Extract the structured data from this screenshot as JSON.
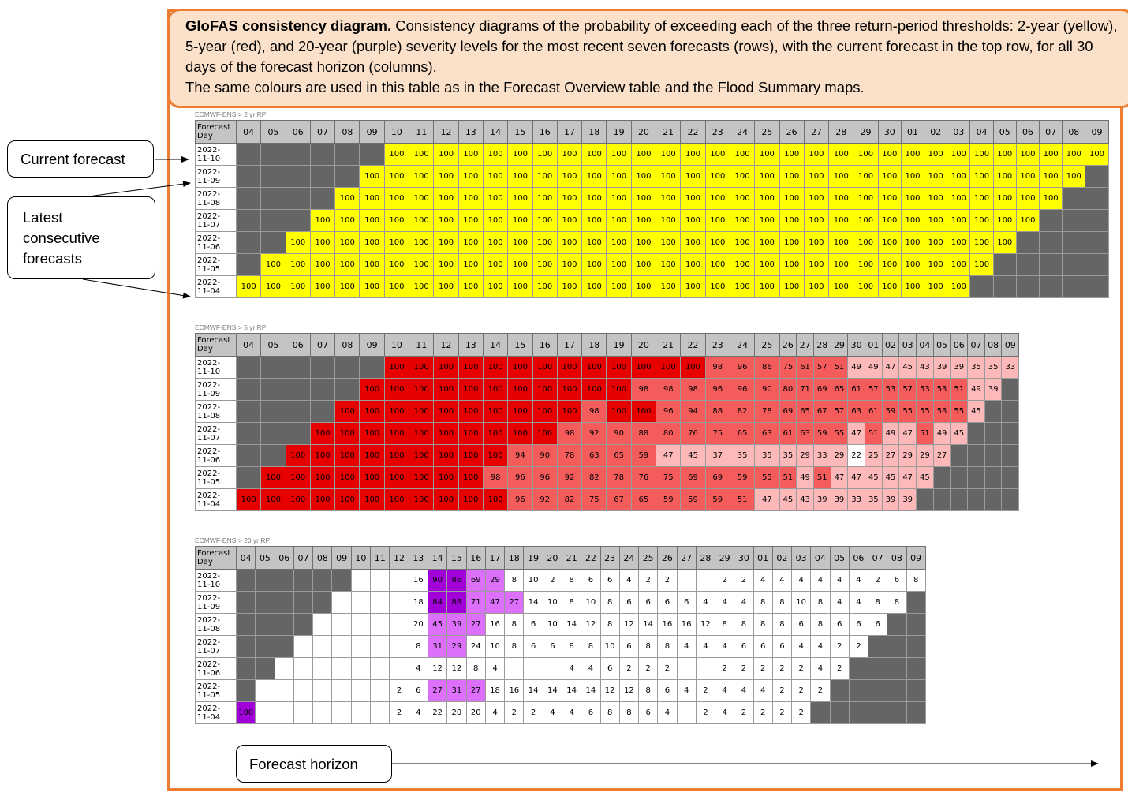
{
  "caption": {
    "title": "GloFAS consistency diagram.",
    "body": " Consistency diagrams of the probability of exceeding each of the three return-period thresholds: 2-year (yellow), 5-year (red), and 20-year (purple) severity levels for the most recent seven forecasts (rows), with the current forecast in the top row, for all 30 days of the forecast horizon (columns).",
    "note": "The same colours are used in this table as in the Forecast Overview table and the Flood Summary maps."
  },
  "callouts": {
    "current": "Current forecast",
    "latest": [
      "Latest",
      "consecutive",
      "forecasts"
    ],
    "horizon": "Forecast horizon"
  },
  "corner_label": [
    "Forecast",
    "Day"
  ],
  "days": [
    "04",
    "05",
    "06",
    "07",
    "08",
    "09",
    "10",
    "11",
    "12",
    "13",
    "14",
    "15",
    "16",
    "17",
    "18",
    "19",
    "20",
    "21",
    "22",
    "23",
    "24",
    "25",
    "26",
    "27",
    "28",
    "29",
    "30",
    "01",
    "02",
    "03",
    "04",
    "05",
    "06",
    "07",
    "08",
    "09"
  ],
  "dates": [
    [
      "2022-",
      "11-10"
    ],
    [
      "2022-",
      "11-09"
    ],
    [
      "2022-",
      "11-08"
    ],
    [
      "2022-",
      "11-07"
    ],
    [
      "2022-",
      "11-06"
    ],
    [
      "2022-",
      "11-05"
    ],
    [
      "2022-",
      "11-04"
    ]
  ],
  "colors": {
    "grey": "#656565",
    "yellow": "#ffff00",
    "red_high": "#e60000",
    "red_mid": "#f45c5c",
    "red_low": "#fdb9b9",
    "purple_high": "#a100d9",
    "purple_mid": "#dd70fb",
    "frame": "#ed7d31"
  },
  "panels": [
    {
      "source": "ECMWF-ENS > 2 yr RP",
      "rows": [
        "g g g g g g 100 100 100 100 100 100 100 100 100 100 100 100 100 100 100 100 100 100 100 100 100 100 100 100 100 100 100 100 100 100",
        "g g g g g 100 100 100 100 100 100 100 100 100 100 100 100 100 100 100 100 100 100 100 100 100 100 100 100 100 100 100 100 100 100 g",
        "g g g g 100 100 100 100 100 100 100 100 100 100 100 100 100 100 100 100 100 100 100 100 100 100 100 100 100 100 100 100 100 100 g g",
        "g g g 100 100 100 100 100 100 100 100 100 100 100 100 100 100 100 100 100 100 100 100 100 100 100 100 100 100 100 100 100 100 g g g",
        "g g 100 100 100 100 100 100 100 100 100 100 100 100 100 100 100 100 100 100 100 100 100 100 100 100 100 100 100 100 100 100 g g g g",
        "g 100 100 100 100 100 100 100 100 100 100 100 100 100 100 100 100 100 100 100 100 100 100 100 100 100 100 100 100 100 100 g g g g g",
        "100 100 100 100 100 100 100 100 100 100 100 100 100 100 100 100 100 100 100 100 100 100 100 100 100 100 100 100 100 100 g g g g g g"
      ]
    },
    {
      "source": "ECMWF-ENS > 5 yr RP",
      "rows": [
        "g g g g g g 100 100 100 100 100 100 100 100 100 100 100 100 100 98 96 86 75 61 57 51 49 49 47 45 43 39 39 35 35 33",
        "g g g g g 100 100 100 100 100 100 100 100 100 100 100 98 98 98 96 96 90 80 71 69 65 61 57 53 57 53 53 51 49 39 g",
        "g g g g 100 100 100 100 100 100 100 100 100 100 98 100 100 96 94 88 82 78 69 65 67 57 63 61 59 55 55 53 55 45 g g",
        "g g g 100 100 100 100 100 100 100 100 100 100 98 92 90 88 80 76 75 65 63 61 63 59 55 47 51 49 47 51 49 45 g g g",
        "g g 100 100 100 100 100 100 100 100 100 94 90 78 63 65 59 47 45 37 35 35 35 29 33 29 22 25 27 29 29 27 g g g g",
        "g 100 100 100 100 100 100 100 100 100 98 96 96 92 82 78 76 75 69 69 59 55 51 49 51 47 47 45 45 47 45 g g g g g",
        "100 100 100 100 100 100 100 100 100 100 100 96 92 82 75 67 65 59 59 59 51 47 45 43 39 39 33 35 39 39 g g g g g g"
      ]
    },
    {
      "source": "ECMWF-ENS > 20 yr RP",
      "rows": [
        "g g g g g g - - - 16 90 86 69 29 8 10 2 8 6 6 4 2 2 - - 2 2 4 4 4 4 4 4 2 6 8",
        "g g g g g - - - - 18 84 88 71 47 27 14 10 8 10 8 6 6 6 6 4 4 4 8 8 10 8 4 4 8 8 g",
        "g g g g - - - - - 20 45 39 27 16 8 6 10 14 12 8 12 14 16 16 12 8 8 8 8 6 8 6 6 6 g g",
        "g g g - - - - - - 8 31 29 24 10 8 6 6 8 8 10 6 8 8 4 4 4 6 6 6 4 4 2 2 g g g",
        "g g - - - - - - - 4 12 12 8 4 - - - 4 4 6 2 2 2 - - 2 2 2 2 2 4 2 g g g g",
        "g - - - - - - - 2 6 27 31 27 18 16 14 14 14 14 12 12 8 6 4 2 4 4 4 2 2 2 g g g g g",
        "100 - - - - - - - 2 4 22 20 20 4 2 2 4 4 6 8 8 6 4 - 2 4 2 2 2 2 g g g g g g"
      ]
    }
  ]
}
